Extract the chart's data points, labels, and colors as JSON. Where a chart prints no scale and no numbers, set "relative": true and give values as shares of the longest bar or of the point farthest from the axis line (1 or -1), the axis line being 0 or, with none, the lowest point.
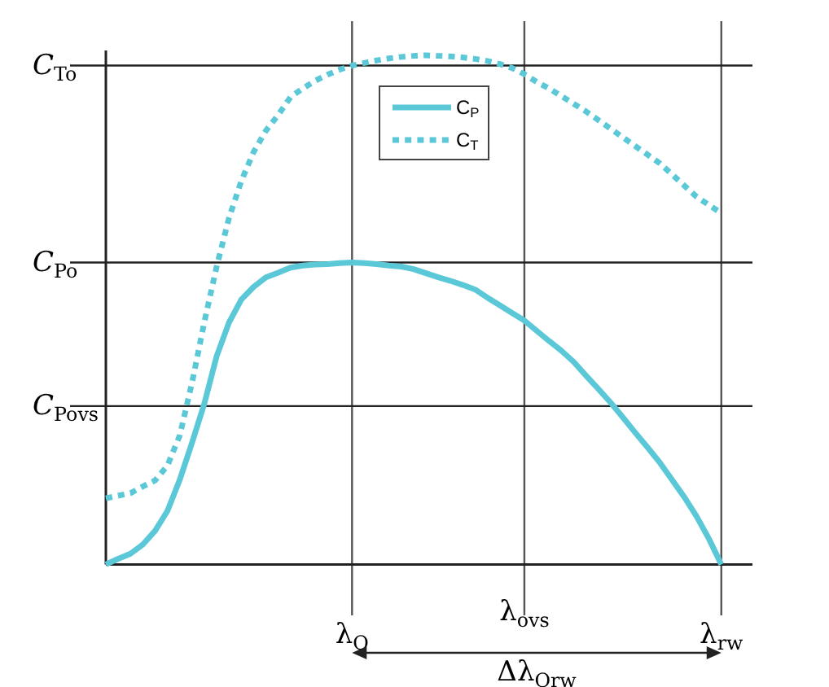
{
  "chart_data": {
    "type": "line",
    "relative": true,
    "categories": [
      null,
      null,
      null,
      null,
      null,
      null,
      null,
      null,
      null,
      null,
      null,
      null,
      null,
      null,
      null,
      null,
      null,
      null,
      null,
      null,
      "λ$_{O}$",
      null,
      null,
      null,
      null,
      null,
      null,
      null,
      null,
      null,
      null,
      null,
      null,
      null,
      "λ$_{ovs}$",
      null,
      null,
      null,
      null,
      null,
      null,
      null,
      null,
      null,
      null,
      null,
      null,
      null,
      null,
      null,
      "λ$_{rw}$",
      null,
      null
    ],
    "series": [
      {
        "name": "C$_{P}$",
        "color": "#5bc8d8",
        "line_style": "solid",
        "values": [
          0,
          0.011,
          0.021,
          0.039,
          0.066,
          0.105,
          0.166,
          0.239,
          0.316,
          0.409,
          0.475,
          0.52,
          0.545,
          0.564,
          0.573,
          0.583,
          0.587,
          0.589,
          0.59,
          0.592,
          0.593,
          0.592,
          0.59,
          0.587,
          0.585,
          0.58,
          0.572,
          0.564,
          0.557,
          0.549,
          0.54,
          0.524,
          0.509,
          0.494,
          0.479,
          0.459,
          0.439,
          0.42,
          0.398,
          0.371,
          0.345,
          0.318,
          0.289,
          0.259,
          0.23,
          0.2,
          0.166,
          0.132,
          0.094,
          0.05,
          0,
          null,
          null
        ]
      },
      {
        "name": "C$_{T}$",
        "color": "#5bc8d8",
        "line_style": "dotted",
        "values": [
          0.13,
          0.135,
          0.14,
          0.153,
          0.165,
          0.194,
          0.253,
          0.357,
          0.476,
          0.585,
          0.68,
          0.753,
          0.81,
          0.852,
          0.883,
          0.918,
          0.935,
          0.95,
          0.962,
          0.972,
          0.98,
          0.985,
          0.99,
          0.994,
          0.997,
          0.999,
          1.0,
          0.999,
          0.998,
          0.996,
          0.993,
          0.989,
          0.983,
          0.975,
          0.963,
          0.948,
          0.935,
          0.92,
          0.905,
          0.89,
          0.873,
          0.856,
          0.839,
          0.822,
          0.805,
          0.788,
          0.766,
          0.744,
          0.722,
          0.706,
          0.69,
          null,
          null
        ]
      }
    ],
    "ref_lines": [
      {
        "axis": "y",
        "value": 0.98,
        "label": "C$_{To}$"
      },
      {
        "axis": "y",
        "value": 0.593,
        "label": "C$_{Po}$"
      },
      {
        "axis": "y",
        "value": 0.311,
        "label": "C$_{Povs}$"
      }
    ],
    "annotations": [
      "Δλ$_{Orw}$"
    ],
    "legend": "top",
    "grid": "x"
  }
}
